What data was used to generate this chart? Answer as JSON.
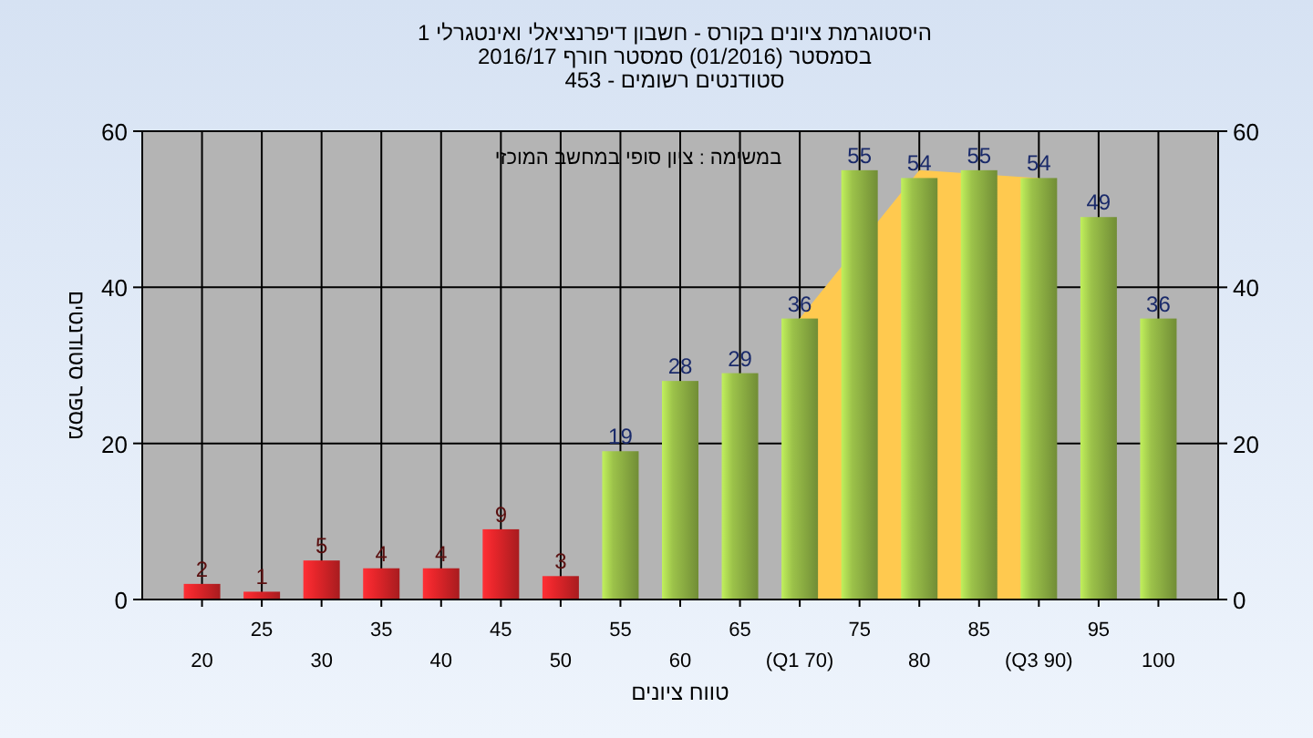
{
  "chart_data": {
    "type": "bar",
    "title": "היסטוגרמת ציונים בקורס - חשבון דיפרנציאלי ואינטגרלי 1",
    "subtitle": "בסמסטר  (01/2016)  סמסטר חורף 2016/17\nסטודנטים רשומים - 453",
    "xlabel": "טווח ציונים",
    "ylabel": "מספר סטודנטים",
    "annotations": [
      "במשימה : ציון סופי במחשב המוכזי"
    ],
    "categories": [
      "20",
      "25",
      "30",
      "35",
      "40",
      "45",
      "50",
      "55",
      "60",
      "65",
      "(Q1 70)",
      "75",
      "80",
      "85",
      "(Q3 90)",
      "95",
      "100"
    ],
    "series": [
      {
        "type": "area",
        "color": "#ffc94f",
        "values": [
          null,
          null,
          null,
          null,
          null,
          null,
          null,
          null,
          null,
          null,
          36,
          null,
          55,
          null,
          54,
          null,
          null
        ]
      },
      {
        "value_labels": [
          "2",
          "1",
          "5",
          "4",
          "4",
          "9",
          "3",
          "19",
          "28",
          "29",
          "36",
          "55",
          "54",
          "55",
          "54",
          "49",
          "36"
        ],
        "colors": [
          "#e8262b",
          "#e8262b",
          "#e8262b",
          "#e8262b",
          "#e8262b",
          "#e8262b",
          "#e8262b",
          "#9cc24a",
          "#9cc24a",
          "#9cc24a",
          "#9cc24a",
          "#9cc24a",
          "#9cc24a",
          "#9cc24a",
          "#9cc24a",
          "#9cc24a",
          "#9cc24a"
        ],
        "values": [
          2,
          1,
          5,
          4,
          4,
          9,
          3,
          19,
          28,
          29,
          36,
          55,
          54,
          55,
          54,
          49,
          36
        ]
      }
    ],
    "ylim": [
      0,
      60
    ],
    "yticks": [
      0,
      20,
      40,
      60
    ],
    "y2lim": [
      0,
      60
    ],
    "y2ticks": [
      0,
      20,
      40,
      60
    ],
    "grid": true
  }
}
